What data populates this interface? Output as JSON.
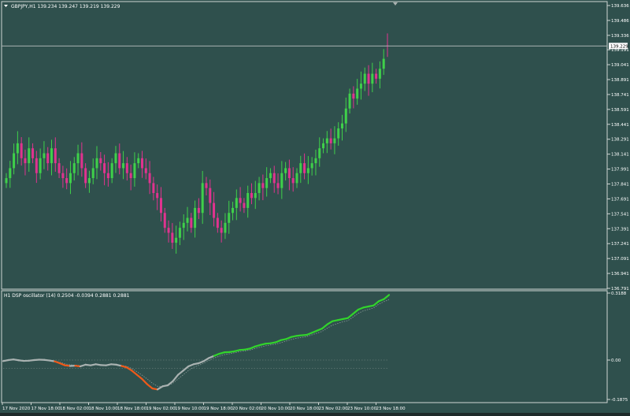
{
  "colors": {
    "background": "#2f504d",
    "frame": "#cfd6d4",
    "text": "#ffffff",
    "bull": "#3fd04a",
    "bear": "#e0338f",
    "osc_up": "#32d42c",
    "osc_down": "#ef5a1a",
    "osc_neutral": "#a9b2b1",
    "signal": "#8a9a98",
    "grid_dot": "#7d8c8a"
  },
  "main_chart": {
    "header": "GBPJPY,H1  139.234 139.247 139.219 139.229",
    "price_scale": [
      "139.636",
      "139.486",
      "139.336",
      "139.191",
      "139.041",
      "138.891",
      "138.741",
      "138.591",
      "138.441",
      "138.291",
      "138.141",
      "137.991",
      "137.841",
      "137.691",
      "137.541",
      "137.391",
      "137.241",
      "137.091",
      "136.941",
      "136.791"
    ],
    "current_price_label": "139.229"
  },
  "oscillator": {
    "header": "H1  DSP oscillator (14)  0.2504 -0.0394 0.2881 0.2881",
    "scale": [
      "0.3188",
      "0.00",
      "-0.1875"
    ]
  },
  "time_axis": [
    "17 Nov 2020",
    "17 Nov 18:00",
    "18 Nov 02:00",
    "18 Nov 10:00",
    "18 Nov 18:00",
    "19 Nov 02:00",
    "19 Nov 10:00",
    "19 Nov 18:00",
    "20 Nov 02:00",
    "20 Nov 10:00",
    "20 Nov 18:00",
    "23 Nov 02:00",
    "23 Nov 10:00",
    "23 Nov 18:00"
  ],
  "chart_data": [
    {
      "type": "candlestick",
      "title": "GBPJPY,H1",
      "symbol": "GBPJPY",
      "timeframe": "H1",
      "last_bar": {
        "open": 139.234,
        "high": 139.247,
        "low": 139.219,
        "close": 139.229
      },
      "ylim": [
        136.791,
        139.636
      ],
      "close_series": [
        137.9,
        138.0,
        138.15,
        138.25,
        138.1,
        138.05,
        138.2,
        138.1,
        137.95,
        138.1,
        138.15,
        138.05,
        138.2,
        138.05,
        137.95,
        137.9,
        137.85,
        137.95,
        138.05,
        138.15,
        138.0,
        137.85,
        137.9,
        138.0,
        138.1,
        138.05,
        137.95,
        137.9,
        138.05,
        138.15,
        138.0,
        138.05,
        137.95,
        137.9,
        138.05,
        138.1,
        138.0,
        137.95,
        137.85,
        137.75,
        137.7,
        137.55,
        137.4,
        137.35,
        137.25,
        137.3,
        137.4,
        137.45,
        137.5,
        137.4,
        137.6,
        137.55,
        137.85,
        137.8,
        137.65,
        137.5,
        137.4,
        137.35,
        137.45,
        137.55,
        137.6,
        137.7,
        137.65,
        137.6,
        137.75,
        137.7,
        137.75,
        137.85,
        137.8,
        137.9,
        137.95,
        137.85,
        137.8,
        137.95,
        138.0,
        137.9,
        137.85,
        137.95,
        138.05,
        137.95,
        138.0,
        138.05,
        138.1,
        138.2,
        138.25,
        138.3,
        138.25,
        138.3,
        138.4,
        138.45,
        138.6,
        138.75,
        138.7,
        138.8,
        138.85,
        138.95,
        138.85,
        138.95,
        138.9,
        139.0,
        139.1,
        139.229
      ],
      "bull_color": "#3fd04a",
      "bear_color": "#e0338f",
      "grid": false
    },
    {
      "type": "line",
      "title": "DSP oscillator (14)",
      "header_values": [
        0.2504,
        -0.0394,
        0.2881,
        0.2881
      ],
      "ylim": [
        -0.1875,
        0.3188
      ],
      "series": [
        {
          "values": [
            -0.005,
            0.0,
            0.003,
            -0.001,
            -0.004,
            -0.003,
            0.0,
            0.002,
            0.001,
            -0.002,
            -0.006,
            -0.015,
            -0.025,
            -0.028,
            -0.027,
            -0.03,
            -0.022,
            -0.025,
            -0.02,
            -0.024,
            -0.025,
            -0.02,
            -0.022,
            -0.028,
            -0.035,
            -0.05,
            -0.07,
            -0.09,
            -0.115,
            -0.135,
            -0.14,
            -0.125,
            -0.12,
            -0.1,
            -0.07,
            -0.05,
            -0.03,
            -0.02,
            -0.015,
            -0.005,
            0.01,
            0.02,
            0.03,
            0.037,
            0.038,
            0.042,
            0.048,
            0.05,
            0.055,
            0.065,
            0.072,
            0.078,
            0.08,
            0.085,
            0.095,
            0.1,
            0.11,
            0.115,
            0.118,
            0.12,
            0.13,
            0.14,
            0.15,
            0.17,
            0.185,
            0.19,
            0.195,
            0.2,
            0.22,
            0.24,
            0.25,
            0.255,
            0.26,
            0.28,
            0.29,
            0.31
          ]
        },
        {
          "values": [
            -0.002,
            0.0,
            0.0,
            0.0,
            -0.002,
            -0.003,
            -0.002,
            0.0,
            0.0,
            -0.001,
            -0.004,
            -0.01,
            -0.018,
            -0.022,
            -0.024,
            -0.026,
            -0.024,
            -0.024,
            -0.022,
            -0.023,
            -0.024,
            -0.022,
            -0.022,
            -0.025,
            -0.03,
            -0.04,
            -0.055,
            -0.072,
            -0.09,
            -0.11,
            -0.125,
            -0.125,
            -0.122,
            -0.11,
            -0.09,
            -0.07,
            -0.05,
            -0.035,
            -0.025,
            -0.015,
            -0.002,
            0.01,
            0.018,
            0.026,
            0.03,
            0.035,
            0.04,
            0.044,
            0.048,
            0.055,
            0.062,
            0.068,
            0.072,
            0.076,
            0.083,
            0.09,
            0.098,
            0.104,
            0.108,
            0.112,
            0.12,
            0.128,
            0.137,
            0.152,
            0.166,
            0.174,
            0.182,
            0.188,
            0.204,
            0.222,
            0.234,
            0.241,
            0.248,
            0.266,
            0.278,
            0.2881
          ]
        }
      ],
      "reference_levels": [
        -0.0394,
        0.0
      ]
    }
  ]
}
